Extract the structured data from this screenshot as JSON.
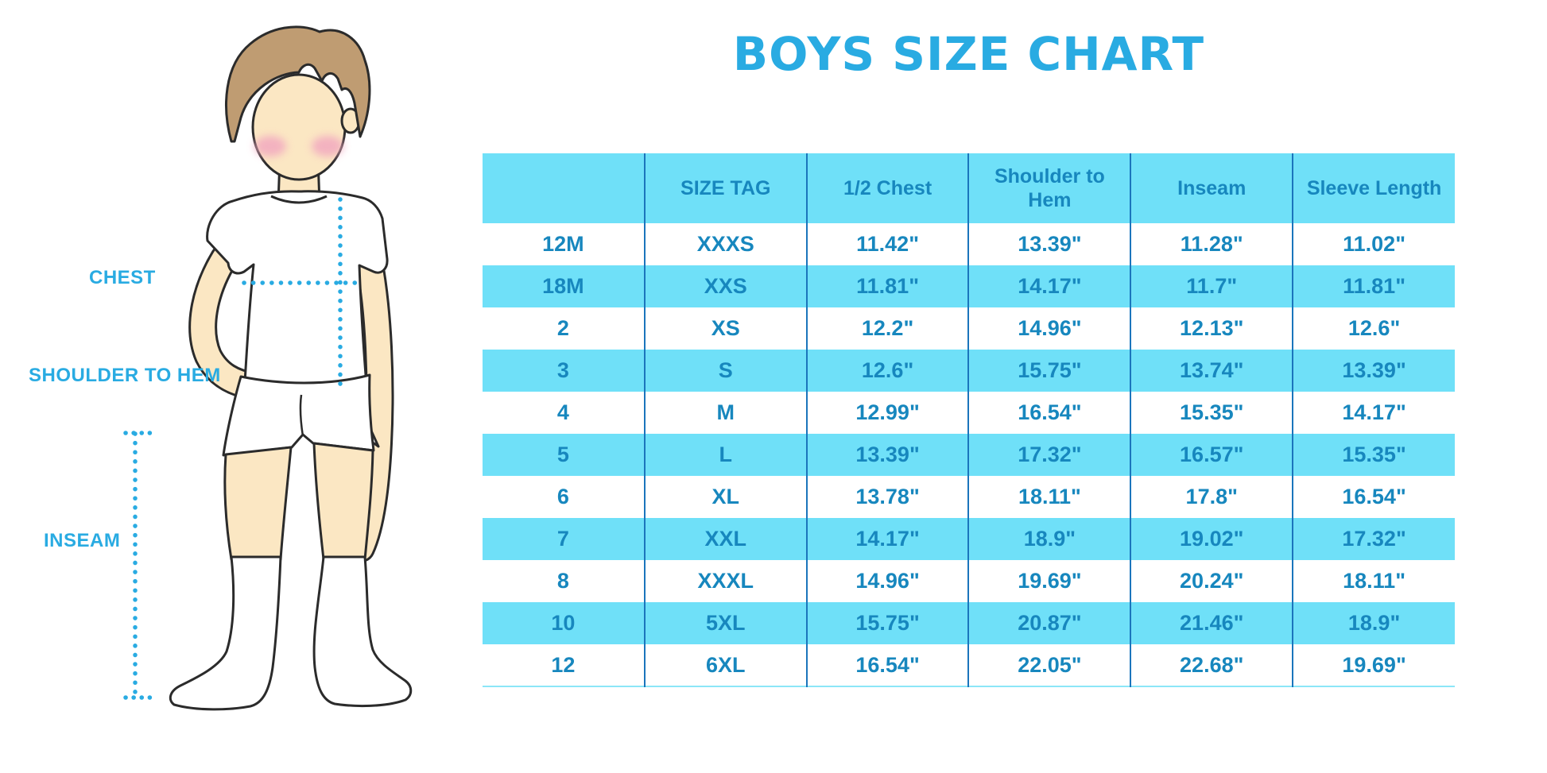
{
  "title": "BOYS SIZE CHART",
  "figure": {
    "description": "boy-in-white-tshirt-shorts-and-socks-with-measurement-lines",
    "labels": {
      "chest": "CHEST",
      "shoulder_to_hem": "SHOULDER TO HEM",
      "inseam": "INSEAM"
    }
  },
  "chart_data": {
    "type": "table",
    "title": "BOYS SIZE CHART",
    "columns": [
      "",
      "SIZE TAG",
      "1/2 Chest",
      "Shoulder to Hem",
      "Inseam",
      "Sleeve Length"
    ],
    "rows": [
      [
        "12M",
        "XXXS",
        "11.42\"",
        "13.39\"",
        "11.28\"",
        "11.02\""
      ],
      [
        "18M",
        "XXS",
        "11.81\"",
        "14.17\"",
        "11.7\"",
        "11.81\""
      ],
      [
        "2",
        "XS",
        "12.2\"",
        "14.96\"",
        "12.13\"",
        "12.6\""
      ],
      [
        "3",
        "S",
        "12.6\"",
        "15.75\"",
        "13.74\"",
        "13.39\""
      ],
      [
        "4",
        "M",
        "12.99\"",
        "16.54\"",
        "15.35\"",
        "14.17\""
      ],
      [
        "5",
        "L",
        "13.39\"",
        "17.32\"",
        "16.57\"",
        "15.35\""
      ],
      [
        "6",
        "XL",
        "13.78\"",
        "18.11\"",
        "17.8\"",
        "16.54\""
      ],
      [
        "7",
        "XXL",
        "14.17\"",
        "18.9\"",
        "19.02\"",
        "17.32\""
      ],
      [
        "8",
        "XXXL",
        "14.96\"",
        "19.69\"",
        "20.24\"",
        "18.11\""
      ],
      [
        "10",
        "5XL",
        "15.75\"",
        "20.87\"",
        "21.46\"",
        "18.9\""
      ],
      [
        "12",
        "6XL",
        "16.54\"",
        "22.05\"",
        "22.68\"",
        "19.69\""
      ]
    ],
    "layout": {
      "row_striping": "white / cyan alternating, header cyan",
      "units": "inches"
    }
  },
  "colors": {
    "accent_blue": "#29ABE2",
    "row_fill_cyan": "#6FE0F8",
    "table_text_blue": "#1787BE",
    "column_divider_blue": "#1B75BC",
    "skin": "#FBE7C3",
    "hair": "#BF9C72"
  }
}
